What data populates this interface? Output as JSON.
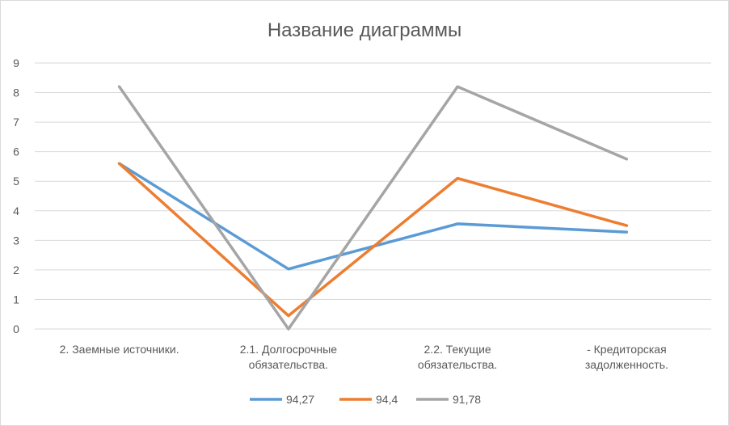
{
  "chart_data": {
    "type": "line",
    "title": "Название диаграммы",
    "categories": [
      [
        "2. Заемные источники."
      ],
      [
        "2.1. Долгосрочные",
        "обязательства."
      ],
      [
        "2.2. Текущие",
        "обязательства."
      ],
      [
        "- Кредиторская",
        "задолженность."
      ]
    ],
    "ylim": [
      0,
      9
    ],
    "yticks": [
      0,
      1,
      2,
      3,
      4,
      5,
      6,
      7,
      8,
      9
    ],
    "grid": true,
    "legend": "bottom",
    "series": [
      {
        "name": "94,27",
        "color": "#5b9bd5",
        "values": [
          5.6,
          2.03,
          3.56,
          3.28
        ]
      },
      {
        "name": "94,4",
        "color": "#ed7d31",
        "values": [
          5.6,
          0.45,
          5.1,
          3.5
        ]
      },
      {
        "name": "91,78",
        "color": "#a5a5a5",
        "values": [
          8.2,
          0.0,
          8.2,
          5.75
        ]
      }
    ]
  }
}
